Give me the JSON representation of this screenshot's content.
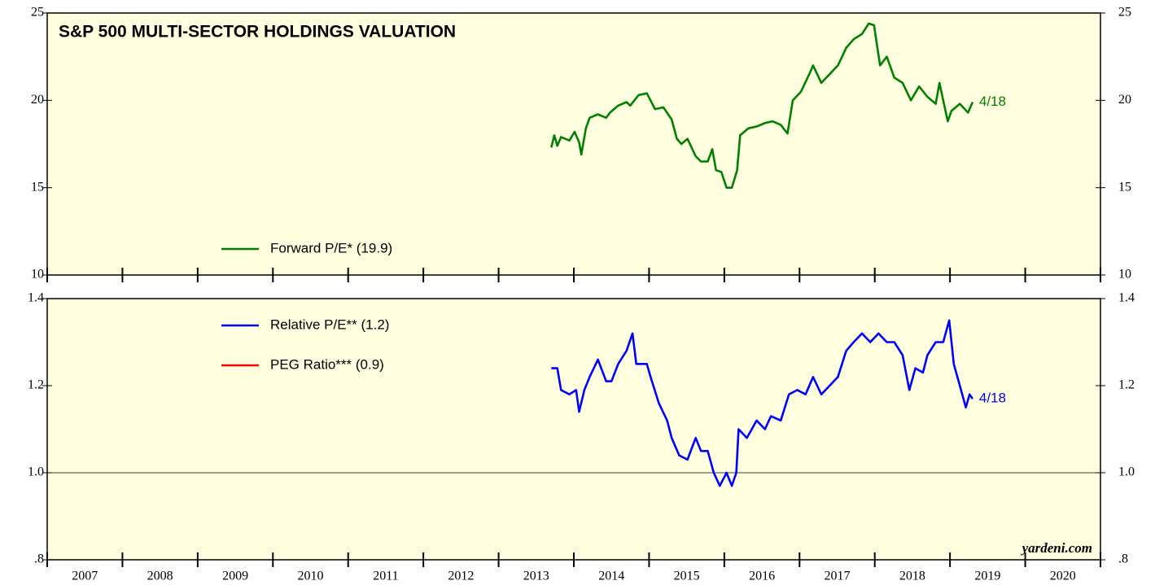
{
  "chart_data": [
    {
      "type": "line",
      "title": "S&P 500 MULTI-SECTOR HOLDINGS VALUATION",
      "xlim": [
        2007,
        2021
      ],
      "ylim": [
        10,
        25
      ],
      "yticks": [
        10,
        15,
        20,
        25
      ],
      "legend": "bottom-left",
      "series": [
        {
          "name": "Forward P/E* (19.9)",
          "color": "#008000",
          "end_label": "4/18",
          "x": [
            2013.7,
            2013.74,
            2013.78,
            2013.83,
            2013.94,
            2014.01,
            2014.07,
            2014.1,
            2014.16,
            2014.21,
            2014.32,
            2014.43,
            2014.48,
            2014.59,
            2014.7,
            2014.75,
            2014.86,
            2014.97,
            2015.08,
            2015.19,
            2015.3,
            2015.37,
            2015.43,
            2015.51,
            2015.62,
            2015.69,
            2015.78,
            2015.84,
            2015.89,
            2015.96,
            2016.03,
            2016.1,
            2016.17,
            2016.21,
            2016.32,
            2016.43,
            2016.54,
            2016.64,
            2016.75,
            2016.84,
            2016.91,
            2017.02,
            2017.13,
            2017.18,
            2017.29,
            2017.4,
            2017.51,
            2017.62,
            2017.72,
            2017.83,
            2017.92,
            2017.99,
            2018.07,
            2018.16,
            2018.26,
            2018.37,
            2018.48,
            2018.59,
            2018.7,
            2018.81,
            2018.86,
            2018.91,
            2018.97,
            2019.02,
            2019.13,
            2019.24,
            2019.3
          ],
          "values": [
            17.3,
            18.0,
            17.4,
            17.9,
            17.7,
            18.2,
            17.6,
            16.9,
            18.4,
            19.0,
            19.2,
            19.0,
            19.3,
            19.7,
            19.9,
            19.7,
            20.3,
            20.4,
            19.5,
            19.6,
            18.9,
            17.8,
            17.5,
            17.8,
            16.8,
            16.5,
            16.5,
            17.2,
            16.0,
            15.9,
            15.0,
            15.0,
            16.0,
            18.0,
            18.4,
            18.5,
            18.7,
            18.8,
            18.6,
            18.1,
            20.0,
            20.5,
            21.5,
            22.0,
            21.0,
            21.5,
            22.0,
            23.0,
            23.5,
            23.8,
            24.4,
            24.3,
            22.0,
            22.5,
            21.3,
            21.0,
            20.0,
            20.8,
            20.2,
            19.8,
            21.0,
            20.0,
            18.8,
            19.4,
            19.8,
            19.3,
            19.9
          ]
        }
      ]
    },
    {
      "type": "line",
      "xlim": [
        2007,
        2021
      ],
      "xticks": [
        {
          "value": 2007.5,
          "label": "2007"
        },
        {
          "value": 2008.5,
          "label": "2008"
        },
        {
          "value": 2009.5,
          "label": "2009"
        },
        {
          "value": 2010.5,
          "label": "2010"
        },
        {
          "value": 2011.5,
          "label": "2011"
        },
        {
          "value": 2012.5,
          "label": "2012"
        },
        {
          "value": 2013.5,
          "label": "2013"
        },
        {
          "value": 2014.5,
          "label": "2014"
        },
        {
          "value": 2015.5,
          "label": "2015"
        },
        {
          "value": 2016.5,
          "label": "2016"
        },
        {
          "value": 2017.5,
          "label": "2017"
        },
        {
          "value": 2018.5,
          "label": "2018"
        },
        {
          "value": 2019.5,
          "label": "2019"
        },
        {
          "value": 2020.5,
          "label": "2020"
        }
      ],
      "ylim": [
        0.8,
        1.4
      ],
      "yticks": [
        {
          "value": 0.8,
          "label": ".8"
        },
        {
          "value": 1.0,
          "label": "1.0"
        },
        {
          "value": 1.2,
          "label": "1.2"
        },
        {
          "value": 1.4,
          "label": "1.4"
        }
      ],
      "hline": 1.0,
      "legend": "top-left",
      "source": "yardeni.com",
      "series": [
        {
          "name": "Relative P/E** (1.2)",
          "color": "#0000ff",
          "end_label": "4/18",
          "x": [
            2013.7,
            2013.78,
            2013.83,
            2013.94,
            2014.03,
            2014.07,
            2014.14,
            2014.21,
            2014.32,
            2014.43,
            2014.5,
            2014.59,
            2014.7,
            2014.78,
            2014.83,
            2014.97,
            2015.02,
            2015.13,
            2015.24,
            2015.3,
            2015.4,
            2015.51,
            2015.62,
            2015.69,
            2015.78,
            2015.86,
            2015.94,
            2016.03,
            2016.1,
            2016.16,
            2016.19,
            2016.3,
            2016.43,
            2016.54,
            2016.62,
            2016.75,
            2016.86,
            2016.97,
            2017.08,
            2017.18,
            2017.29,
            2017.4,
            2017.51,
            2017.62,
            2017.72,
            2017.83,
            2017.94,
            2018.05,
            2018.16,
            2018.26,
            2018.37,
            2018.46,
            2018.54,
            2018.64,
            2018.7,
            2018.81,
            2018.91,
            2018.99,
            2019.05,
            2019.13,
            2019.21,
            2019.26,
            2019.3
          ],
          "values": [
            1.24,
            1.24,
            1.19,
            1.18,
            1.19,
            1.14,
            1.19,
            1.22,
            1.26,
            1.21,
            1.21,
            1.25,
            1.28,
            1.32,
            1.25,
            1.25,
            1.22,
            1.16,
            1.12,
            1.08,
            1.04,
            1.03,
            1.08,
            1.05,
            1.05,
            1.0,
            0.97,
            1.0,
            0.97,
            1.0,
            1.1,
            1.08,
            1.12,
            1.1,
            1.13,
            1.12,
            1.18,
            1.19,
            1.18,
            1.22,
            1.18,
            1.2,
            1.22,
            1.28,
            1.3,
            1.32,
            1.3,
            1.32,
            1.3,
            1.3,
            1.27,
            1.19,
            1.24,
            1.23,
            1.27,
            1.3,
            1.3,
            1.35,
            1.25,
            1.2,
            1.15,
            1.18,
            1.17
          ]
        },
        {
          "name": "PEG Ratio*** (0.9)",
          "color": "#ff0000",
          "x": [],
          "values": []
        }
      ]
    }
  ]
}
